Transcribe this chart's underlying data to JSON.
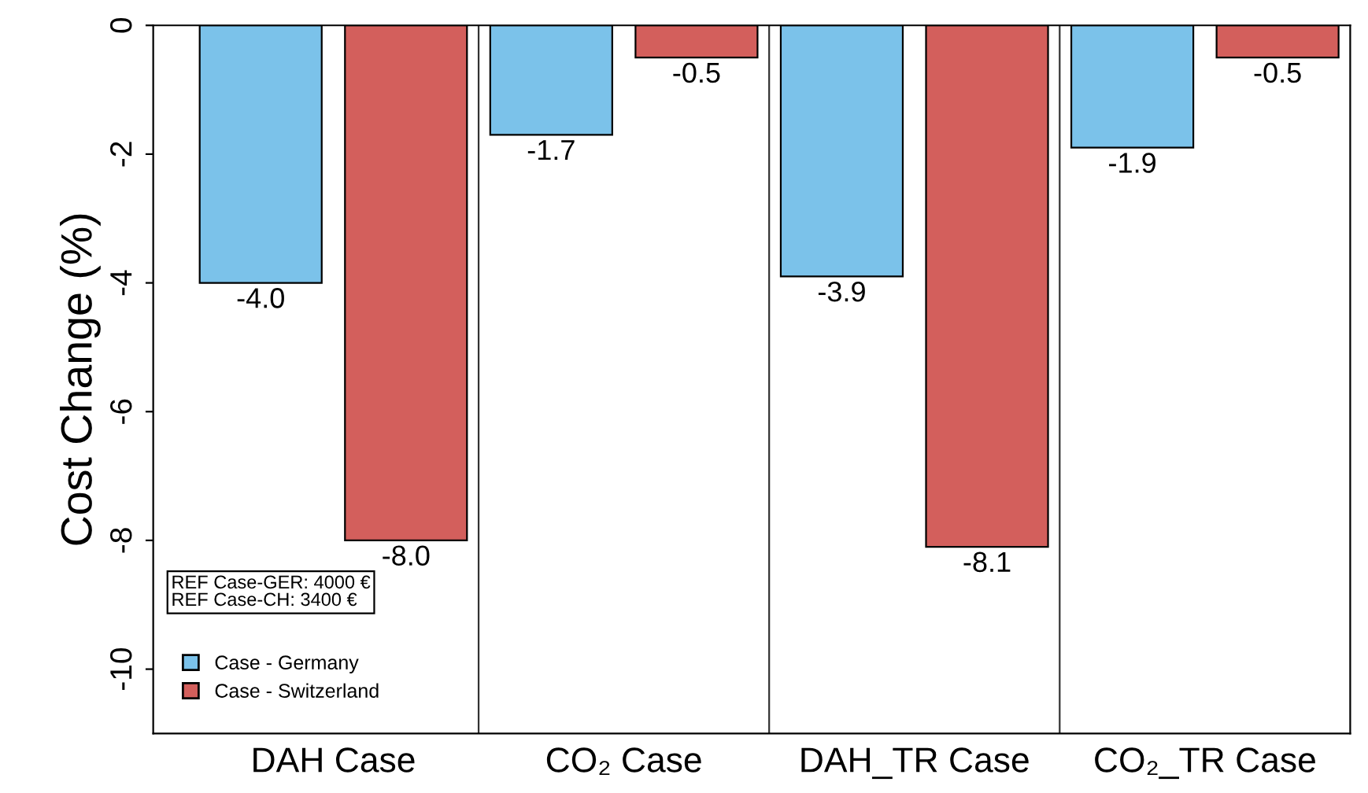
{
  "chart_data": {
    "type": "bar",
    "ylabel": "Cost Change (%)",
    "categories": [
      "DAH Case",
      "CO₂ Case",
      "DAH_TR Case",
      "CO₂_TR Case"
    ],
    "series": [
      {
        "name": "Case - Germany",
        "color": "#7bc2ea",
        "values": [
          -4.0,
          -1.7,
          -3.9,
          -1.9
        ],
        "value_labels": [
          "-4.0",
          "-1.7",
          "-3.9",
          "-1.9"
        ]
      },
      {
        "name": "Case - Switzerland",
        "color": "#d35f5c",
        "values": [
          -8.0,
          -0.5,
          -8.1,
          -0.5
        ],
        "value_labels": [
          "-8.0",
          "-0.5",
          "-8.1",
          "-0.5"
        ]
      }
    ],
    "ylim": [
      -11,
      0
    ],
    "yticks": [
      0,
      -2,
      -4,
      -6,
      -8,
      -10
    ],
    "annotations": [
      "REF Case-GER: 4000 €\nREF Case-CH: 3400 €"
    ],
    "legend": "bottom left",
    "grid": false
  }
}
